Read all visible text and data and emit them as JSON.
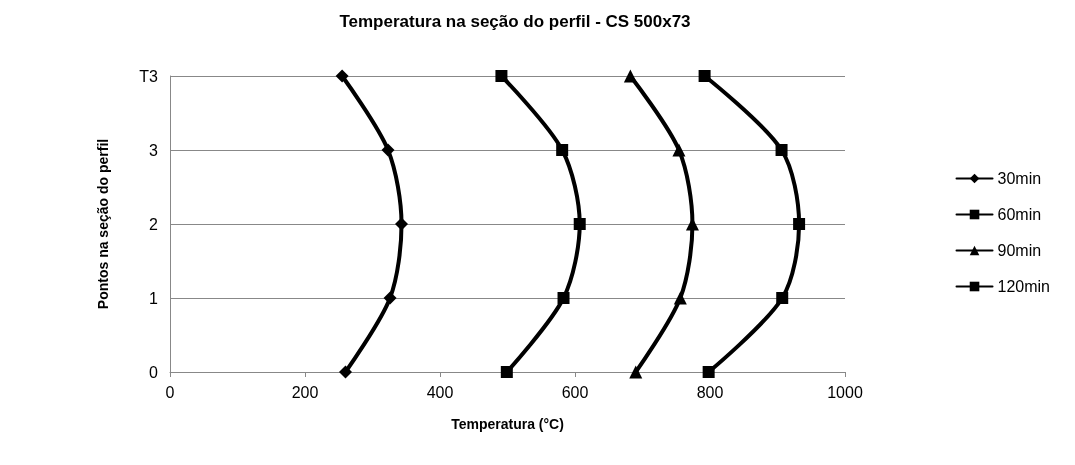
{
  "chart_data": {
    "type": "line",
    "title": "Temperatura na seção do perfil - CS 500x73",
    "xlabel": "Temperatura (°C)",
    "ylabel": "Pontos na seção do perfil",
    "xlim": [
      0,
      1000
    ],
    "xticks": [
      0,
      200,
      400,
      600,
      800,
      1000
    ],
    "ylim": [
      0,
      4
    ],
    "yticks": [
      0,
      1,
      2,
      3,
      {
        "value": 4,
        "label": "T3"
      }
    ],
    "grid": "y",
    "legend": "right",
    "line_style": "solid",
    "series": [
      {
        "name": "30min",
        "color": "#000000",
        "marker": "diamond",
        "x": [
          260,
          326,
          343,
          323,
          255
        ],
        "values": [
          0,
          1,
          2,
          3,
          4
        ]
      },
      {
        "name": "60min",
        "color": "#000000",
        "marker": "square",
        "x": [
          499,
          583,
          607,
          581,
          491
        ],
        "values": [
          0,
          1,
          2,
          3,
          4
        ]
      },
      {
        "name": "90min",
        "color": "#000000",
        "marker": "triangle",
        "x": [
          690,
          756,
          774,
          754,
          682
        ],
        "values": [
          0,
          1,
          2,
          3,
          4
        ]
      },
      {
        "name": "120min",
        "color": "#000000",
        "marker": "square",
        "x": [
          798,
          907,
          932,
          906,
          792
        ],
        "values": [
          0,
          1,
          2,
          3,
          4
        ]
      }
    ]
  }
}
